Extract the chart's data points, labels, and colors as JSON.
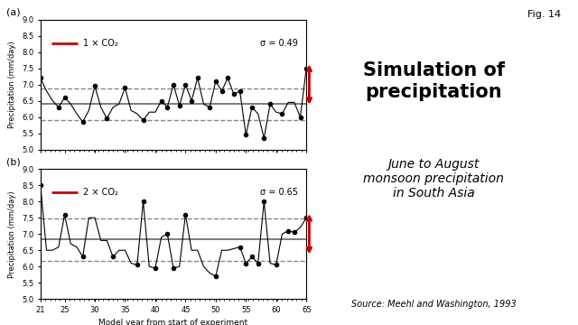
{
  "title_a": "1 × CO₂",
  "title_b": "2 × CO₂",
  "sigma_a": "σ = 0.49",
  "sigma_b": "σ = 0.65",
  "xlabel": "Model year from start of experiment",
  "ylabel": "Precipitation (mm/day)",
  "xlim": [
    21,
    65
  ],
  "ylim": [
    5.0,
    9.0
  ],
  "yticks": [
    5.0,
    5.5,
    6.0,
    6.5,
    7.0,
    7.5,
    8.0,
    8.5,
    9.0
  ],
  "xticks": [
    21,
    25,
    30,
    35,
    40,
    45,
    50,
    55,
    60,
    65
  ],
  "mean_a": 6.4,
  "std_a": 0.49,
  "mean_b": 6.83,
  "std_b": 0.65,
  "x_a": [
    21,
    22,
    23,
    24,
    25,
    26,
    27,
    28,
    29,
    30,
    31,
    32,
    33,
    34,
    35,
    36,
    37,
    38,
    39,
    40,
    41,
    42,
    43,
    44,
    45,
    46,
    47,
    48,
    49,
    50,
    51,
    52,
    53,
    54,
    55,
    56,
    57,
    58,
    59,
    60,
    61,
    62,
    63,
    64,
    65
  ],
  "y_a": [
    7.2,
    6.8,
    6.5,
    6.3,
    6.6,
    6.4,
    6.1,
    5.85,
    6.2,
    6.95,
    6.3,
    5.95,
    6.3,
    6.4,
    6.9,
    6.2,
    6.1,
    5.9,
    6.15,
    6.15,
    6.5,
    6.3,
    7.0,
    6.35,
    7.0,
    6.5,
    7.2,
    6.4,
    6.3,
    7.1,
    6.8,
    7.2,
    6.7,
    6.8,
    5.45,
    6.3,
    6.1,
    5.35,
    6.4,
    6.15,
    6.1,
    6.45,
    6.45,
    6.0,
    7.5
  ],
  "x_b": [
    21,
    22,
    23,
    24,
    25,
    26,
    27,
    28,
    29,
    30,
    31,
    32,
    33,
    34,
    35,
    36,
    37,
    38,
    39,
    40,
    41,
    42,
    43,
    44,
    45,
    46,
    47,
    48,
    49,
    50,
    51,
    52,
    53,
    54,
    55,
    56,
    57,
    58,
    59,
    60,
    61,
    62,
    63,
    64,
    65
  ],
  "y_b": [
    8.5,
    6.5,
    6.5,
    6.6,
    7.6,
    6.7,
    6.6,
    6.3,
    7.5,
    7.5,
    6.8,
    6.8,
    6.3,
    6.5,
    6.5,
    6.1,
    6.05,
    8.0,
    6.0,
    5.95,
    6.9,
    7.0,
    5.95,
    6.0,
    7.6,
    6.5,
    6.5,
    6.0,
    5.8,
    5.7,
    6.5,
    6.5,
    6.55,
    6.6,
    6.1,
    6.3,
    6.1,
    8.0,
    6.1,
    6.05,
    7.0,
    7.1,
    7.05,
    7.2,
    7.5
  ],
  "right_title": "Simulation of\nprecipitation",
  "right_subtitle": "June to August\nmonsoon precipitation\nin South Asia",
  "source": "Source: Meehl and Washington, 1993",
  "fig_label": "Fig. 14",
  "label_a": "(a)",
  "label_b": "(b)",
  "line_color": "#000000",
  "dot_color": "#000000",
  "mean_line_color": "#666666",
  "dashed_line_color": "#888888",
  "arrow_color": "#cc0000",
  "red_line_color": "#cc0000",
  "background": "#ffffff"
}
